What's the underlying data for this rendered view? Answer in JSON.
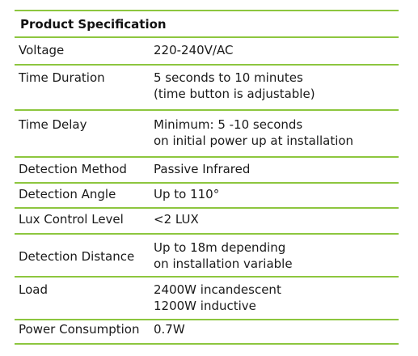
{
  "table": {
    "title": "Product Specification",
    "accent_color": "#8dc63f",
    "rows": [
      {
        "label": "Voltage",
        "value": [
          "220-240V/AC"
        ]
      },
      {
        "label": "Time Duration",
        "value": [
          "5 seconds to 10 minutes",
          "(time button is adjustable)"
        ]
      },
      {
        "label": "Time Delay",
        "value": [
          "Minimum: 5 -10 seconds",
          "on initial power up at installation"
        ]
      },
      {
        "label": "Detection Method",
        "value": [
          "Passive Infrared"
        ]
      },
      {
        "label": "Detection Angle",
        "value": [
          "Up to 110°"
        ]
      },
      {
        "label": "Lux Control Level",
        "value": [
          "<2 LUX"
        ]
      },
      {
        "label": "Detection Distance",
        "value": [
          "Up to 18m depending",
          "on installation variable"
        ]
      },
      {
        "label": "Load",
        "value": [
          "2400W incandescent",
          "1200W inductive"
        ]
      },
      {
        "label": "Power Consumption",
        "value": [
          "0.7W"
        ]
      }
    ]
  }
}
